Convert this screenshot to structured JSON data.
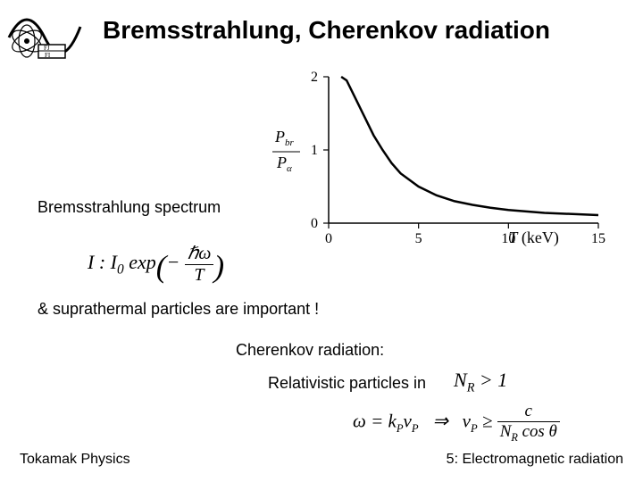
{
  "title": "Bremsstrahlung, Cherenkov radiation",
  "spectrum_label": "Bremsstrahlung spectrum",
  "suprathermal": "&  suprathermal particles are important !",
  "cherenkov_label": "Cherenkov radiation:",
  "relativistic": "Relativistic particles in",
  "footer_left": "Tokamak Physics",
  "footer_right": "5: Electromagnetic radiation",
  "chart": {
    "type": "line",
    "ylabel_html": "P<sub>br</sub> / P<sub>α</sub>",
    "xlabel": "T (keV)",
    "xlim": [
      0,
      15
    ],
    "ylim": [
      0,
      2
    ],
    "xticks": [
      0,
      5,
      10,
      15
    ],
    "yticks": [
      0,
      1,
      2
    ],
    "line_color": "#000000",
    "line_width": 2.5,
    "background_color": "#ffffff",
    "axis_color": "#000000",
    "tick_fontsize": 16,
    "label_fontsize": 18,
    "points": [
      {
        "x": 0.7,
        "y": 2.0
      },
      {
        "x": 1.0,
        "y": 1.95
      },
      {
        "x": 1.5,
        "y": 1.7
      },
      {
        "x": 2.0,
        "y": 1.45
      },
      {
        "x": 2.5,
        "y": 1.2
      },
      {
        "x": 3.0,
        "y": 1.0
      },
      {
        "x": 3.5,
        "y": 0.82
      },
      {
        "x": 4.0,
        "y": 0.68
      },
      {
        "x": 5.0,
        "y": 0.5
      },
      {
        "x": 6.0,
        "y": 0.38
      },
      {
        "x": 7.0,
        "y": 0.3
      },
      {
        "x": 8.0,
        "y": 0.25
      },
      {
        "x": 9.0,
        "y": 0.21
      },
      {
        "x": 10.0,
        "y": 0.18
      },
      {
        "x": 12.0,
        "y": 0.14
      },
      {
        "x": 15.0,
        "y": 0.11
      }
    ]
  },
  "formula1": {
    "text_html": "I : I<sub>0</sub> exp(− ℏω / T)"
  },
  "nr_formula": {
    "text_html": "N<sub>R</sub> > 1"
  },
  "omega_formula": {
    "text_html": "ω = k<sub>P</sub>v<sub>P</sub>  ⇒  v<sub>P</sub> ≥ c / (N<sub>R</sub> cos θ)"
  },
  "colors": {
    "text": "#000000",
    "background": "#ffffff"
  }
}
